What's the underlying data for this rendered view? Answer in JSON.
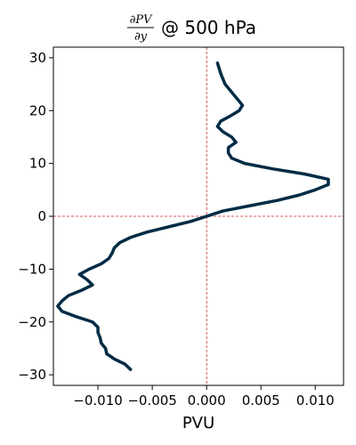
{
  "chart_data": {
    "type": "line",
    "title": {
      "numerator": "∂PV",
      "denominator": "∂y",
      "suffix": "@ 500 hPa"
    },
    "xlabel": "PVU",
    "ylabel": "",
    "xlim": [
      -0.0141,
      0.0126
    ],
    "ylim": [
      -32,
      32
    ],
    "xticks": [
      -0.01,
      -0.005,
      0.0,
      0.005,
      0.01
    ],
    "xtick_labels": [
      "−0.010",
      "−0.005",
      "0.000",
      "0.005",
      "0.010"
    ],
    "yticks": [
      -30,
      -20,
      -10,
      0,
      10,
      20,
      30
    ],
    "ytick_labels": [
      "−30",
      "−20",
      "−10",
      "0",
      "10",
      "20",
      "30"
    ],
    "grid": false,
    "reference_lines": {
      "x": 0,
      "y": 0,
      "color": "#cc2222",
      "style": "dashed"
    },
    "series": [
      {
        "color": "#002b45",
        "points": [
          [
            0.001,
            29
          ],
          [
            0.0013,
            27
          ],
          [
            0.0017,
            25
          ],
          [
            0.0025,
            23
          ],
          [
            0.0033,
            21
          ],
          [
            0.003,
            20
          ],
          [
            0.0022,
            19
          ],
          [
            0.0013,
            18
          ],
          [
            0.001,
            17
          ],
          [
            0.0015,
            16
          ],
          [
            0.0023,
            15
          ],
          [
            0.0027,
            14
          ],
          [
            0.002,
            13
          ],
          [
            0.002,
            12
          ],
          [
            0.0023,
            11
          ],
          [
            0.0035,
            10
          ],
          [
            0.006,
            9
          ],
          [
            0.009,
            8
          ],
          [
            0.0112,
            7
          ],
          [
            0.0112,
            6
          ],
          [
            0.01,
            5
          ],
          [
            0.0085,
            4
          ],
          [
            0.0065,
            3
          ],
          [
            0.004,
            2
          ],
          [
            0.0015,
            1
          ],
          [
            0.0,
            0
          ],
          [
            -0.0015,
            -1
          ],
          [
            -0.0035,
            -2
          ],
          [
            -0.0055,
            -3
          ],
          [
            -0.007,
            -4
          ],
          [
            -0.008,
            -5
          ],
          [
            -0.0085,
            -6
          ],
          [
            -0.0087,
            -7
          ],
          [
            -0.009,
            -8
          ],
          [
            -0.0097,
            -9
          ],
          [
            -0.0108,
            -10
          ],
          [
            -0.0117,
            -11
          ],
          [
            -0.011,
            -12
          ],
          [
            -0.0105,
            -13
          ],
          [
            -0.0115,
            -14
          ],
          [
            -0.0127,
            -15
          ],
          [
            -0.0133,
            -16
          ],
          [
            -0.0137,
            -17
          ],
          [
            -0.0133,
            -18
          ],
          [
            -0.012,
            -19
          ],
          [
            -0.0105,
            -20
          ],
          [
            -0.01,
            -21
          ],
          [
            -0.01,
            -22
          ],
          [
            -0.0098,
            -23
          ],
          [
            -0.0097,
            -24
          ],
          [
            -0.0093,
            -25
          ],
          [
            -0.0092,
            -26
          ],
          [
            -0.0085,
            -27
          ],
          [
            -0.0075,
            -28
          ],
          [
            -0.007,
            -29
          ]
        ]
      }
    ]
  }
}
